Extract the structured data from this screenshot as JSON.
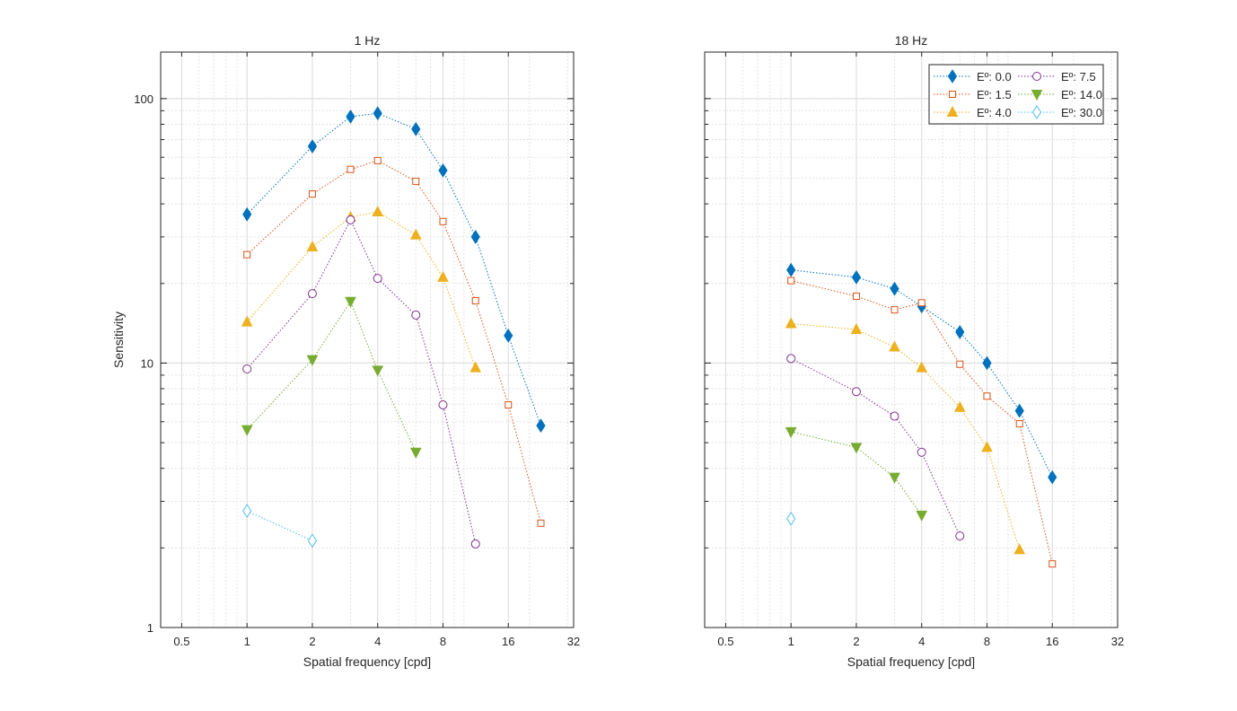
{
  "chart_data": [
    {
      "type": "line",
      "title": "1 Hz",
      "xlabel": "Spatial frequency [cpd]",
      "ylabel": "Sensitivity",
      "xscale": "log2",
      "yscale": "log10",
      "xlim": [
        0.4,
        32
      ],
      "ylim": [
        1,
        150
      ],
      "xticks": [
        0.5,
        1,
        2,
        4,
        8,
        16,
        32
      ],
      "xtick_labels": [
        "0.5",
        "1",
        "2",
        "4",
        "8",
        "16",
        "32"
      ],
      "yticks": [
        1,
        10,
        100
      ],
      "ytick_labels": [
        "1",
        "10",
        "100"
      ],
      "grid": true,
      "series": [
        {
          "name": "Eº: 0.0",
          "x": [
            1,
            2,
            3,
            4,
            6,
            8,
            11.3,
            16,
            22.6
          ],
          "y": [
            36.5,
            66,
            85.5,
            88,
            76.7,
            53.5,
            30,
            12.7,
            5.8
          ]
        },
        {
          "name": "Eº: 1.5",
          "x": [
            1,
            2,
            3,
            4,
            6,
            8,
            11.3,
            16,
            22.6
          ],
          "y": [
            25.7,
            43.6,
            54,
            58.3,
            48.7,
            34.3,
            17.2,
            6.95,
            2.48
          ]
        },
        {
          "name": "Eº: 4.0",
          "x": [
            1,
            2,
            3,
            4,
            6,
            8,
            11.3
          ],
          "y": [
            14.3,
            27.5,
            35.6,
            37.3,
            30.5,
            21.1,
            9.6
          ]
        },
        {
          "name": "Eº: 7.5",
          "x": [
            1,
            2,
            3,
            4,
            6,
            8,
            11.3
          ],
          "y": [
            9.5,
            18.3,
            34.8,
            20.9,
            15.2,
            6.95,
            2.07
          ]
        },
        {
          "name": "Eº: 14.0",
          "x": [
            1,
            2,
            3,
            4,
            6
          ],
          "y": [
            5.6,
            10.3,
            17.1,
            9.4,
            4.6
          ]
        },
        {
          "name": "Eº: 30.0",
          "x": [
            1,
            2
          ],
          "y": [
            2.76,
            2.13
          ]
        }
      ]
    },
    {
      "type": "line",
      "title": "18 Hz",
      "xlabel": "Spatial frequency [cpd]",
      "ylabel": "",
      "xscale": "log2",
      "yscale": "log10",
      "xlim": [
        0.4,
        32
      ],
      "ylim": [
        1,
        150
      ],
      "xticks": [
        0.5,
        1,
        2,
        4,
        8,
        16,
        32
      ],
      "xtick_labels": [
        "0.5",
        "1",
        "2",
        "4",
        "8",
        "16",
        "32"
      ],
      "yticks": [],
      "ytick_labels": [],
      "grid": true,
      "legend": "top-right",
      "series": [
        {
          "name": "Eº: 0.0",
          "x": [
            1,
            2,
            3,
            4,
            6,
            8,
            11.3,
            16
          ],
          "y": [
            22.5,
            21.1,
            19.1,
            16.4,
            13.1,
            10,
            6.6,
            3.7
          ]
        },
        {
          "name": "Eº: 1.5",
          "x": [
            1,
            2,
            3,
            4,
            6,
            8,
            11.3,
            16
          ],
          "y": [
            20.5,
            17.9,
            15.9,
            16.9,
            9.9,
            7.5,
            5.9,
            1.74
          ]
        },
        {
          "name": "Eº: 4.0",
          "x": [
            1,
            2,
            3,
            4,
            6,
            8,
            11.3
          ],
          "y": [
            14.1,
            13.4,
            11.5,
            9.6,
            6.8,
            4.8,
            1.97
          ]
        },
        {
          "name": "Eº: 7.5",
          "x": [
            1,
            2,
            3,
            4,
            6
          ],
          "y": [
            10.4,
            7.8,
            6.3,
            4.6,
            2.22
          ]
        },
        {
          "name": "Eº: 14.0",
          "x": [
            1,
            2,
            3,
            4
          ],
          "y": [
            5.5,
            4.8,
            3.7,
            2.66
          ]
        },
        {
          "name": "Eº: 30.0",
          "x": [
            1
          ],
          "y": [
            2.58
          ]
        }
      ]
    }
  ],
  "series_style": [
    {
      "color": "#0072BD",
      "marker": "diamond-filled"
    },
    {
      "color": "#D95319",
      "marker": "square-open"
    },
    {
      "color": "#EDB120",
      "marker": "triangle-up-filled"
    },
    {
      "color": "#7E2F8E",
      "marker": "circle-open"
    },
    {
      "color": "#77AC30",
      "marker": "triangle-down-filled"
    },
    {
      "color": "#4DBEEE",
      "marker": "diamond-open"
    }
  ]
}
